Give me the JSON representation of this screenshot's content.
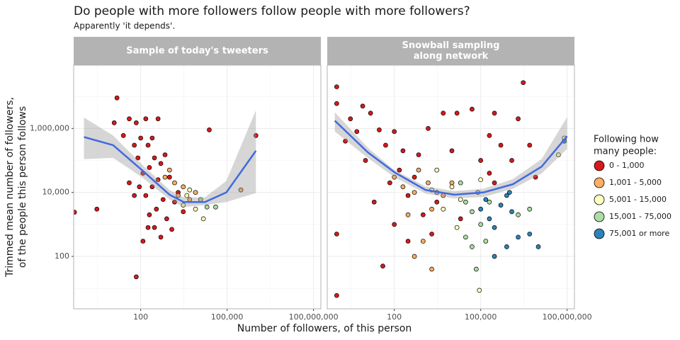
{
  "title": "Do people with more followers follow people with more followers?",
  "subtitle": "Apparently 'it depends'.",
  "x_label": "Number of followers, of this person",
  "y_label": [
    "Trimmed mean number of followers,",
    "of the people this person follows"
  ],
  "legend": {
    "title": [
      "Following how",
      "many people:"
    ],
    "position": "right"
  },
  "axes": {
    "x_log": true,
    "y_log": true,
    "grid": true,
    "xlim": [
      0.47,
      180000000
    ],
    "ylim": [
      2.3,
      95000000
    ],
    "xticks": [
      100,
      {
        "value": 100000,
        "label": "100,000"
      },
      {
        "value": 100000000,
        "label": "100,000,000"
      }
    ],
    "yticks": [
      100,
      {
        "value": 10000,
        "label": "10,000"
      },
      {
        "value": 1000000,
        "label": "1,000,000"
      }
    ],
    "xticks_minor": [
      3.162,
      3162,
      3162278
    ],
    "yticks_minor": [
      10,
      1000,
      100000,
      10000000
    ]
  },
  "chart_data": [
    {
      "type": "scatter",
      "title": [
        "Sample of today's tweeters"
      ],
      "series": [
        {
          "name": "0 - 1,000",
          "color": "#d7191c",
          "x": [
            0.5,
            3,
            15,
            12,
            25,
            40,
            40,
            60,
            70,
            70,
            80,
            100,
            120,
            150,
            150,
            180,
            200,
            200,
            250,
            250,
            300,
            300,
            350,
            400,
            400,
            500,
            500,
            600,
            700,
            800,
            1000,
            1200,
            1500,
            2000,
            3000,
            120,
            180,
            60,
            90,
            24000,
            1000000
          ],
          "y": [
            2400,
            3000,
            9000000,
            1500000,
            600000,
            2000000,
            20000,
            300000,
            1500000,
            23,
            120000,
            500000,
            40000,
            2000000,
            8000,
            300000,
            60000,
            2000,
            15000,
            500000,
            800,
            120000,
            3000,
            25000,
            2000000,
            400,
            80000,
            6000,
            150000,
            1500,
            30000,
            700,
            5000,
            10000,
            2500,
            300,
            800,
            8000,
            15000,
            900000,
            600000
          ]
        },
        {
          "name": "1,001 - 5,000",
          "color": "#fdae61",
          "x": [
            700,
            1000,
            1500,
            2000,
            3000,
            5000,
            8000,
            300000
          ],
          "y": [
            30000,
            50000,
            20000,
            8000,
            15000,
            6000,
            10000,
            12000
          ]
        },
        {
          "name": "5,001 - 15,000",
          "color": "#ffffbf",
          "x": [
            3000,
            5000,
            8000,
            15000,
            4000
          ],
          "y": [
            4000,
            12000,
            3000,
            1500,
            8000
          ]
        },
        {
          "name": "15,001 - 75,000",
          "color": "#abdda4",
          "x": [
            20000,
            40000,
            12000
          ],
          "y": [
            3500,
            3500,
            6000
          ]
        },
        {
          "name": "75,001 or more",
          "color": "#2b83ba",
          "x": [],
          "y": []
        }
      ],
      "smooth": {
        "color": "#4169e1",
        "x": [
          1.07,
          11,
          110,
          1000,
          3100,
          17000,
          94000,
          1000000
        ],
        "y": [
          540000,
          300000,
          50000,
          8500,
          5000,
          5000,
          10000,
          200000
        ],
        "lower": [
          110000,
          120000,
          30000,
          6000,
          3500,
          4000,
          5000,
          9600
        ],
        "upper": [
          2200000,
          600000,
          75000,
          12000,
          7000,
          7000,
          23000,
          3700000
        ]
      }
    },
    {
      "type": "scatter",
      "title": [
        "Snowball sampling",
        "along network"
      ],
      "series": [
        {
          "name": "0 - 1,000",
          "color": "#d7191c",
          "x": [
            1,
            1,
            1,
            1,
            2,
            3,
            5,
            8,
            10,
            15,
            20,
            30,
            40,
            50,
            70,
            100,
            100,
            150,
            200,
            300,
            300,
            500,
            700,
            1000,
            1500,
            2000,
            3000,
            5000,
            10000,
            15000,
            20000,
            50000,
            100000,
            200000,
            300000,
            500000,
            3000000,
            1200000,
            2000000,
            5000000,
            8000000,
            300000,
            200000
          ],
          "y": [
            20000000,
            6000000,
            500,
            6,
            400000,
            2000000,
            800000,
            5000000,
            100000,
            3000000,
            5000,
            900000,
            50,
            300000,
            20000,
            800000,
            1000,
            50000,
            200000,
            8000,
            300,
            30000,
            150000,
            2000,
            1000000,
            500,
            5000,
            3000000,
            200000,
            3000000,
            1500,
            4000000,
            100000,
            600000,
            20000,
            300000,
            27000000,
            100000,
            2000000,
            300000,
            30000,
            3000000,
            40000
          ]
        },
        {
          "name": "1,001 - 5,000",
          "color": "#fdae61",
          "x": [
            100,
            200,
            300,
            500,
            700,
            1000,
            1500,
            2000,
            3000,
            5000,
            10000,
            500,
            2000
          ],
          "y": [
            30000,
            15000,
            2000,
            10000,
            50000,
            300,
            20000,
            3000,
            10000,
            8000,
            20000,
            100,
            40
          ]
        },
        {
          "name": "5,001 - 15,000",
          "color": "#ffffbf",
          "x": [
            2000,
            3000,
            5000,
            10000,
            20000,
            15000,
            100000,
            90000,
            80000000,
            50000000
          ],
          "y": [
            12000,
            50000,
            3000,
            15000,
            6000,
            800,
            25000,
            8.7,
            500000,
            150000
          ]
        },
        {
          "name": "15,001 - 75,000",
          "color": "#abdda4",
          "x": [
            20000,
            30000,
            50000,
            80000,
            30000,
            50000,
            70000,
            100000,
            2000000,
            5000000,
            200000,
            150000
          ],
          "y": [
            20000,
            5000,
            2500,
            10000,
            400,
            200,
            40,
            1000,
            2000,
            3000,
            5000,
            300
          ]
        },
        {
          "name": "75,001 or more",
          "color": "#2b83ba",
          "x": [
            100000,
            150000,
            200000,
            300000,
            500000,
            800000,
            1200000,
            2000000,
            5000000,
            10000000,
            300000,
            1000000,
            800000,
            80000000
          ],
          "y": [
            3000,
            6000,
            1500,
            800,
            4000,
            200,
            2500,
            400,
            500,
            200,
            100,
            10000,
            8000,
            400000
          ]
        }
      ],
      "smooth": {
        "color": "#4169e1",
        "x": [
          0.86,
          12,
          100,
          1200,
          12000,
          125000,
          1300000,
          13000000,
          100000000
        ],
        "y": [
          1750000,
          180000,
          43000,
          12000,
          8500,
          10000,
          18000,
          64000,
          570000
        ],
        "lower": [
          800000,
          120000,
          30000,
          9300,
          6500,
          7200,
          13000,
          39000,
          230000
        ],
        "upper": [
          3200000,
          250000,
          50000,
          15500,
          11000,
          13000,
          26000,
          110000,
          2250000
        ]
      }
    }
  ]
}
